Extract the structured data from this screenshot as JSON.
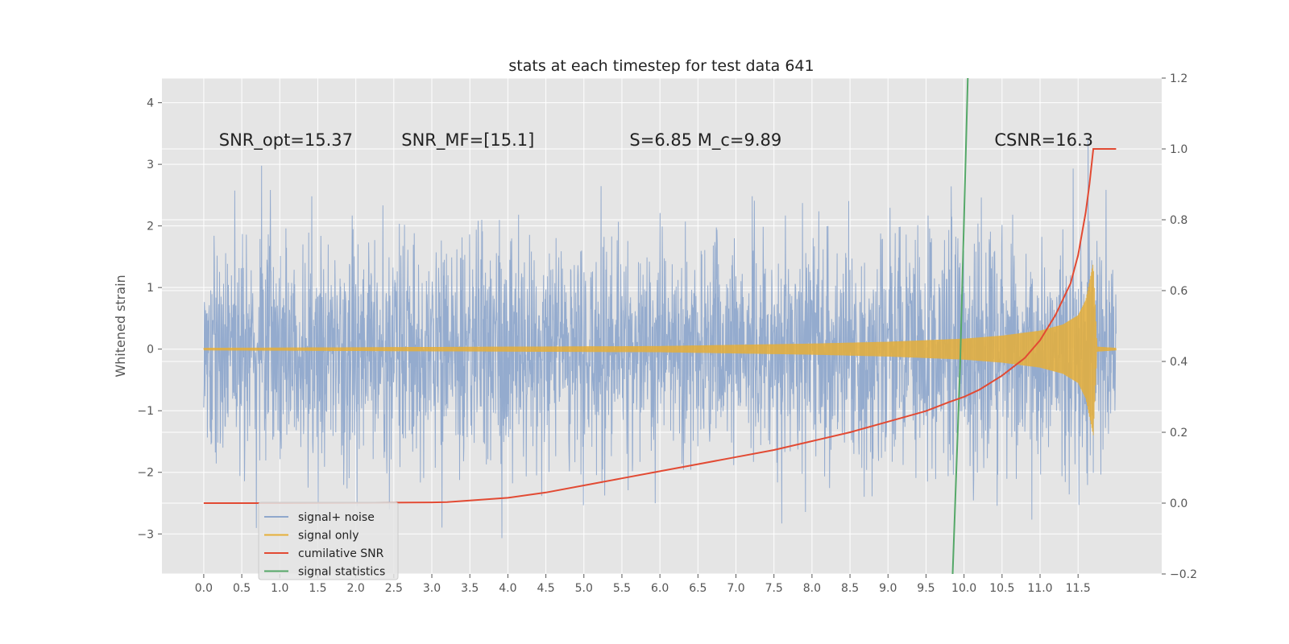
{
  "chart_data": {
    "type": "line",
    "title": "stats at each timestep for test data 641",
    "ylabel": "Whitened strain",
    "xlim": [
      -0.55,
      12.6
    ],
    "ylim": [
      -3.65,
      4.4
    ],
    "y2lim": [
      -0.2,
      1.2
    ],
    "grid": true,
    "xticks": [
      "0.0",
      "0.5",
      "1.0",
      "1.5",
      "2.0",
      "2.5",
      "3.0",
      "3.5",
      "4.0",
      "4.5",
      "5.0",
      "5.5",
      "6.0",
      "6.5",
      "7.0",
      "7.5",
      "8.0",
      "8.5",
      "9.0",
      "9.5",
      "10.0",
      "10.5",
      "11.0",
      "11.5"
    ],
    "yticks": [
      "−3",
      "−2",
      "−1",
      "0",
      "1",
      "2",
      "3",
      "4"
    ],
    "y2ticks": [
      "−0.2",
      "0.0",
      "0.2",
      "0.4",
      "0.6",
      "0.8",
      "1.0",
      "1.2"
    ],
    "annotations": [
      {
        "text": "SNR_opt=15.37",
        "x": 0.2,
        "y": 3.3
      },
      {
        "text": "SNR_MF=[15.1]",
        "x": 2.6,
        "y": 3.3
      },
      {
        "text": "S=6.85   M_c=9.89",
        "x": 5.6,
        "y": 3.3
      },
      {
        "text": "CSNR=16.3",
        "x": 10.4,
        "y": 3.3
      }
    ],
    "legend_position": "lower-left",
    "series": [
      {
        "name": "signal+ noise",
        "color": "#8fa8cc",
        "axis": "left",
        "noise_std": 0.9,
        "x_range": [
          0.0,
          12.0
        ]
      },
      {
        "name": "signal only",
        "color": "#e5ae38",
        "axis": "left",
        "envelope": {
          "x": [
            0,
            2,
            4,
            6,
            7,
            8,
            9,
            10,
            10.5,
            11,
            11.3,
            11.5,
            11.6,
            11.65,
            11.7,
            11.75,
            12.0
          ],
          "amp": [
            0.02,
            0.03,
            0.04,
            0.05,
            0.07,
            0.09,
            0.12,
            0.17,
            0.22,
            0.3,
            0.4,
            0.55,
            0.8,
            1.1,
            1.4,
            0.04,
            0.02
          ]
        }
      },
      {
        "name": "cumilative SNR",
        "color": "#e24a33",
        "axis": "right",
        "x": [
          0.0,
          1.0,
          2.0,
          3.0,
          3.2,
          4.0,
          4.5,
          5.0,
          5.5,
          6.0,
          6.5,
          7.0,
          7.5,
          8.0,
          8.5,
          9.0,
          9.5,
          9.8,
          10.0,
          10.2,
          10.5,
          10.8,
          11.0,
          11.2,
          11.4,
          11.5,
          11.6,
          11.65,
          11.7,
          12.0
        ],
        "y": [
          0.0,
          0.0,
          0.001,
          0.002,
          0.003,
          0.015,
          0.03,
          0.05,
          0.07,
          0.09,
          0.11,
          0.13,
          0.15,
          0.175,
          0.2,
          0.23,
          0.26,
          0.285,
          0.3,
          0.32,
          0.36,
          0.41,
          0.46,
          0.53,
          0.62,
          0.7,
          0.82,
          0.9,
          1.0,
          1.0
        ]
      },
      {
        "name": "signal statistics",
        "color": "#55a868",
        "axis": "right",
        "x": [
          9.85,
          9.95,
          10.05
        ],
        "y": [
          -0.2,
          0.4,
          1.2
        ]
      }
    ]
  }
}
